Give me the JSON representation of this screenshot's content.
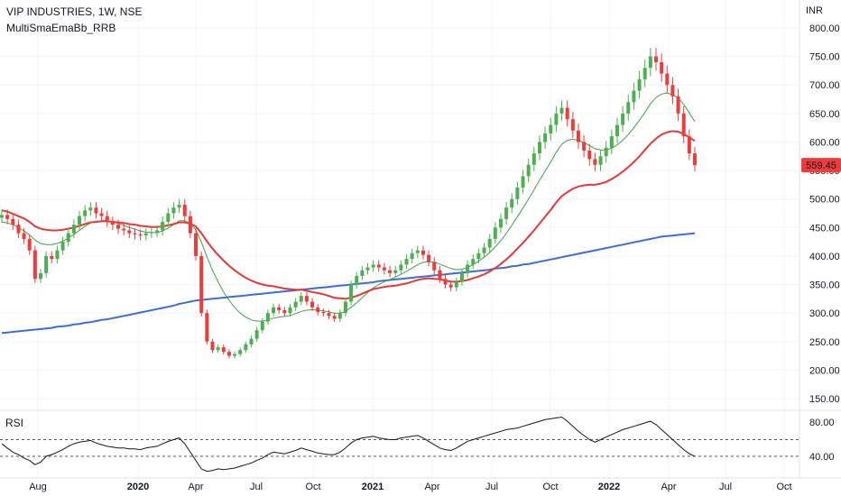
{
  "header": {
    "title": "VIP INDUSTRIES, 1W, NSE",
    "indicator": "MultiSmaEmaBb_RRB",
    "currency": "INR"
  },
  "colors": {
    "up": "#4caf50",
    "down": "#ef3b3b",
    "ema_red": "#e53935",
    "ma_green": "#43a047",
    "ma_blue": "#3d6ed1",
    "price_badge": "#ef3b3b",
    "rsi_line": "#131722"
  },
  "rsi_panel": {
    "label": "RSI",
    "ticks": [
      "80.00",
      "40.00"
    ],
    "upper_level": 60,
    "lower_level": 40
  },
  "chart_data": {
    "type": "candlestick",
    "x_ticks": [
      "Aug",
      "2020",
      "Apr",
      "Jul",
      "Oct",
      "2021",
      "Apr",
      "Jul",
      "Oct",
      "2022",
      "Apr",
      "Jul",
      "Oct"
    ],
    "y_ticks": [
      "800.00",
      "750.00",
      "700.00",
      "650.00",
      "600.00",
      "550.00",
      "500.00",
      "450.00",
      "400.00",
      "350.00",
      "300.00",
      "250.00",
      "200.00",
      "150.00"
    ],
    "ylim": [
      130,
      820
    ],
    "last_price": "559.45",
    "close": [
      472,
      465,
      455,
      440,
      430,
      410,
      360,
      370,
      400,
      395,
      410,
      425,
      440,
      455,
      470,
      480,
      485,
      475,
      470,
      460,
      455,
      448,
      445,
      440,
      438,
      436,
      440,
      442,
      445,
      460,
      475,
      485,
      490,
      470,
      440,
      400,
      300,
      250,
      235,
      240,
      232,
      225,
      228,
      235,
      245,
      255,
      270,
      285,
      300,
      310,
      305,
      300,
      310,
      320,
      330,
      320,
      310,
      302,
      300,
      295,
      290,
      300,
      320,
      350,
      365,
      375,
      380,
      385,
      380,
      375,
      370,
      375,
      385,
      395,
      405,
      410,
      402,
      390,
      375,
      360,
      350,
      345,
      355,
      370,
      385,
      395,
      405,
      415,
      430,
      450,
      465,
      485,
      500,
      520,
      540,
      560,
      580,
      600,
      615,
      630,
      650,
      660,
      640,
      620,
      600,
      585,
      570,
      560,
      575,
      590,
      610,
      630,
      650,
      670,
      690,
      710,
      730,
      750,
      740,
      720,
      700,
      680,
      650,
      610,
      580,
      559.45
    ],
    "ema_red": [
      480,
      478,
      474,
      470,
      466,
      460,
      452,
      448,
      446,
      445,
      445,
      446,
      448,
      450,
      453,
      456,
      459,
      460,
      461,
      461,
      460,
      459,
      458,
      456,
      455,
      453,
      452,
      451,
      451,
      452,
      454,
      456,
      459,
      459,
      457,
      452,
      440,
      426,
      413,
      402,
      392,
      383,
      375,
      368,
      362,
      357,
      353,
      350,
      348,
      347,
      345,
      343,
      342,
      341,
      341,
      339,
      337,
      335,
      333,
      330,
      327,
      326,
      325,
      327,
      330,
      334,
      338,
      342,
      344,
      346,
      347,
      348,
      350,
      352,
      355,
      358,
      360,
      361,
      360,
      359,
      357,
      355,
      355,
      356,
      358,
      361,
      364,
      368,
      373,
      379,
      386,
      394,
      403,
      413,
      423,
      434,
      445,
      457,
      469,
      481,
      494,
      505,
      512,
      518,
      522,
      524,
      525,
      525,
      527,
      530,
      535,
      541,
      548,
      556,
      565,
      575,
      586,
      597,
      606,
      613,
      617,
      619,
      618,
      614,
      608,
      602
    ],
    "ma_green": [
      460,
      458,
      455,
      450,
      444,
      437,
      428,
      422,
      420,
      420,
      422,
      426,
      432,
      438,
      445,
      452,
      458,
      461,
      462,
      462,
      460,
      457,
      454,
      450,
      447,
      444,
      442,
      441,
      441,
      444,
      449,
      455,
      462,
      462,
      457,
      446,
      424,
      399,
      375,
      355,
      337,
      322,
      310,
      300,
      293,
      288,
      286,
      286,
      288,
      291,
      293,
      294,
      296,
      299,
      303,
      305,
      306,
      305,
      304,
      302,
      300,
      300,
      303,
      310,
      318,
      327,
      336,
      344,
      350,
      355,
      359,
      363,
      368,
      373,
      379,
      385,
      389,
      390,
      389,
      386,
      382,
      378,
      376,
      377,
      380,
      385,
      391,
      398,
      406,
      416,
      427,
      440,
      454,
      469,
      484,
      500,
      516,
      533,
      549,
      565,
      582,
      596,
      603,
      605,
      603,
      599,
      594,
      588,
      586,
      586,
      589,
      595,
      603,
      613,
      625,
      638,
      652,
      667,
      678,
      684,
      686,
      683,
      677,
      666,
      651,
      636
    ],
    "ma_blue": [
      265,
      266,
      267,
      268,
      269,
      270,
      271,
      272,
      273,
      274,
      276,
      277,
      278,
      280,
      281,
      283,
      284,
      286,
      288,
      289,
      291,
      293,
      295,
      297,
      299,
      301,
      303,
      305,
      307,
      309,
      311,
      313,
      316,
      318,
      320,
      322,
      323,
      324,
      325,
      326,
      327,
      328,
      329,
      330,
      331,
      332,
      333,
      334,
      335,
      336,
      337,
      338,
      339,
      340,
      341,
      342,
      343,
      344,
      345,
      346,
      347,
      348,
      349,
      350,
      351,
      352,
      353,
      354,
      356,
      357,
      358,
      359,
      360,
      361,
      362,
      363,
      364,
      365,
      366,
      367,
      368,
      369,
      370,
      371,
      372,
      373,
      374,
      375,
      376,
      378,
      379,
      380,
      382,
      383,
      385,
      386,
      388,
      390,
      392,
      394,
      396,
      398,
      400,
      402,
      404,
      406,
      408,
      410,
      412,
      414,
      416,
      418,
      420,
      422,
      424,
      426,
      428,
      430,
      432,
      434,
      435,
      436,
      437,
      438,
      439,
      440
    ],
    "rsi": [
      55,
      50,
      45,
      42,
      38,
      35,
      30,
      33,
      40,
      42,
      45,
      48,
      52,
      55,
      57,
      58,
      59,
      56,
      54,
      52,
      51,
      50,
      50,
      49,
      49,
      48,
      50,
      51,
      52,
      55,
      58,
      60,
      62,
      55,
      45,
      35,
      25,
      22,
      23,
      25,
      24,
      25,
      26,
      28,
      30,
      32,
      35,
      38,
      42,
      45,
      44,
      43,
      45,
      47,
      50,
      48,
      46,
      44,
      43,
      42,
      42,
      45,
      50,
      56,
      60,
      62,
      63,
      64,
      62,
      61,
      60,
      60,
      62,
      63,
      64,
      65,
      62,
      58,
      54,
      50,
      48,
      47,
      50,
      54,
      58,
      60,
      62,
      64,
      66,
      68,
      70,
      72,
      73,
      74,
      76,
      78,
      80,
      82,
      84,
      85,
      86,
      87,
      82,
      76,
      70,
      65,
      60,
      57,
      60,
      63,
      66,
      69,
      72,
      74,
      76,
      78,
      80,
      82,
      78,
      72,
      66,
      60,
      54,
      48,
      43,
      40
    ]
  }
}
